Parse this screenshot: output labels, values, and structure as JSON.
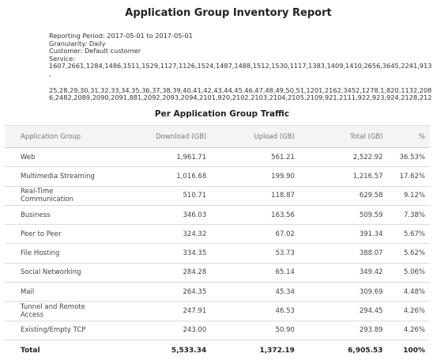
{
  "report": {
    "title": "Application Group Inventory Report",
    "reporting_period": "Reporting Period: 2017-05-01 to 2017-05-01",
    "granularity": "Granularity: Daily",
    "customer": "Customer: Default customer",
    "service_label": "Service:",
    "service_line1": "1607,2661,1284,1486,1511,1529,1127,1126,1524,1487,1488,1512,1530,1117,1383,1409,1410,2656,3645,2241,913",
    "service_line1b": ",",
    "service_line2": "25,28,29,30,31,32,33,34,35,36,37,38,39,40,41,42,43,44,45,46,47,48,49,50,51,1201,2162,3452,1278,1,820,1132,208",
    "service_line3": "6,2482,2089,2090,2091,881,2092,2093,2094,2101,920,2102,2103,2104,2105,2109,921,2111,922,923,924,2128,212"
  },
  "section": {
    "title": "Per Application Group Traffic"
  },
  "table": {
    "headers": {
      "group": "Application Group",
      "download": "Download (GB)",
      "upload": "Upload (GB)",
      "total": "Total (GB)",
      "pct": "%"
    },
    "rows": [
      {
        "group": "Web",
        "download": "1,961.71",
        "upload": "561.21",
        "total": "2,522.92",
        "pct": "36.53%"
      },
      {
        "group": "Multimedia Streaming",
        "download": "1,016.68",
        "upload": "199.90",
        "total": "1,216.57",
        "pct": "17.62%"
      },
      {
        "group": "Real-Time Communication",
        "download": "510.71",
        "upload": "118.87",
        "total": "629.58",
        "pct": "9.12%"
      },
      {
        "group": "Business",
        "download": "346.03",
        "upload": "163.56",
        "total": "509.59",
        "pct": "7.38%"
      },
      {
        "group": "Peer to Peer",
        "download": "324.32",
        "upload": "67.02",
        "total": "391.34",
        "pct": "5.67%"
      },
      {
        "group": "File Hosting",
        "download": "334.35",
        "upload": "53.73",
        "total": "388.07",
        "pct": "5.62%"
      },
      {
        "group": "Social Networking",
        "download": "284.28",
        "upload": "65.14",
        "total": "349.42",
        "pct": "5.06%"
      },
      {
        "group": "Mail",
        "download": "264.35",
        "upload": "45.34",
        "total": "309.69",
        "pct": "4.48%"
      },
      {
        "group": "Tunnel and Remote Access",
        "download": "247.91",
        "upload": "46.53",
        "total": "294.45",
        "pct": "4.26%"
      },
      {
        "group": "Existing/Empty TCP",
        "download": "243.00",
        "upload": "50.90",
        "total": "293.89",
        "pct": "4.26%"
      }
    ],
    "total": {
      "group": "Total",
      "download": "5,533.34",
      "upload": "1,372.19",
      "total": "6,905.53",
      "pct": "100%"
    }
  }
}
